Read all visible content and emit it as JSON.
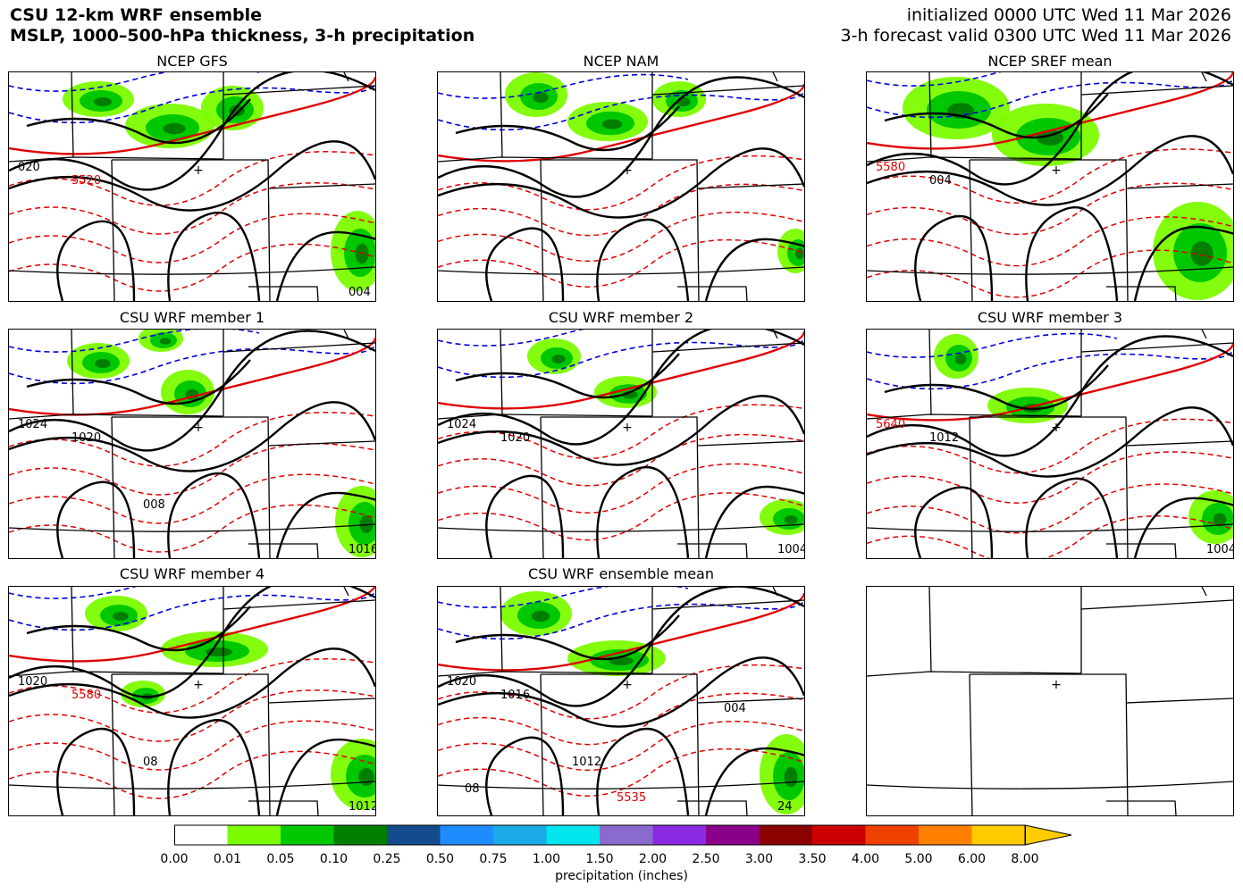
{
  "header": {
    "title_line1": "CSU 12-km WRF ensemble",
    "title_line2": "MSLP, 1000–500-hPa thickness, 3-h precipitation",
    "init_line": "initialized 0000 UTC Wed 11 Mar 2026",
    "valid_line": "3-h forecast valid 0300 UTC Wed 11 Mar 2026"
  },
  "panels": [
    {
      "title": "NCEP GFS",
      "labels": [
        "020",
        "5520",
        "004"
      ]
    },
    {
      "title": "NCEP NAM",
      "labels": []
    },
    {
      "title": "NCEP SREF mean",
      "labels": [
        "5580",
        "004"
      ]
    },
    {
      "title": "CSU WRF member 1",
      "labels": [
        "1024",
        "1020",
        "1016",
        "008"
      ]
    },
    {
      "title": "CSU WRF member 2",
      "labels": [
        "1024",
        "1020",
        "1004"
      ]
    },
    {
      "title": "CSU WRF member 3",
      "labels": [
        "5640",
        "1012",
        "1004"
      ]
    },
    {
      "title": "CSU WRF member 4",
      "labels": [
        "1020",
        "5580",
        "1012",
        "08"
      ]
    },
    {
      "title": "CSU WRF ensemble mean",
      "labels": [
        "1020",
        "1016",
        "24",
        "1012",
        "08",
        "5535",
        "004"
      ]
    },
    {
      "title": "",
      "labels": []
    }
  ],
  "colorbar": {
    "label": "precipitation (inches)",
    "ticks": [
      "0.00",
      "0.01",
      "0.05",
      "0.10",
      "0.25",
      "0.50",
      "0.75",
      "1.00",
      "1.50",
      "2.00",
      "2.50",
      "3.00",
      "3.50",
      "4.00",
      "5.00",
      "6.00",
      "8.00"
    ],
    "colors": [
      "#ffffff",
      "#7cfc00",
      "#00c800",
      "#007e00",
      "#124c8c",
      "#1e8cff",
      "#1aabe6",
      "#00e5ee",
      "#8a6acc",
      "#8a2be2",
      "#8b008b",
      "#8b0000",
      "#cd0000",
      "#ee4000",
      "#ff7f00",
      "#ffcc00"
    ]
  },
  "colors": {
    "isobar": "#000000",
    "thickness_warm": "#e00000",
    "thickness_cold": "#0000dd",
    "precip_light": "#7cfc00",
    "precip_mod": "#00c800",
    "precip_heavy": "#007e00"
  }
}
